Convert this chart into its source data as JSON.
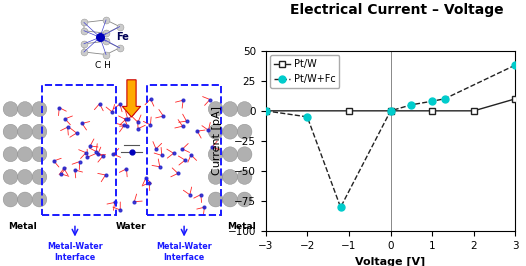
{
  "title": "Electrical Current – Voltage",
  "xlabel": "Voltage [V]",
  "ylabel": "Current [pA]",
  "xlim": [
    -3,
    3
  ],
  "ylim": [
    -100,
    50
  ],
  "yticks": [
    -100,
    -75,
    -50,
    -25,
    0,
    25,
    50
  ],
  "xticks": [
    -3,
    -2,
    -1,
    0,
    1,
    2,
    3
  ],
  "ptw_x": [
    -3,
    -1,
    0,
    1,
    2,
    3
  ],
  "ptw_y": [
    0,
    0,
    0,
    0,
    0,
    10
  ],
  "ptwfc_x": [
    -3,
    -2,
    -1.2,
    0,
    0.5,
    1.0,
    1.3,
    3
  ],
  "ptwfc_y": [
    0,
    -5,
    -80,
    0,
    5,
    8,
    10,
    38
  ],
  "ptw_color": "#222222",
  "ptwfc_color": "#00cccc",
  "background": "#ffffff",
  "title_fontsize": 10,
  "axis_fontsize": 8,
  "tick_fontsize": 7.5,
  "legend_fontsize": 7,
  "metal_color": "#b0b0b0",
  "water_bg": "#ffffff",
  "blue_arrow_color": "#1a1aff",
  "red_arrow_color": "#dd2200",
  "orange_arrow_color": "#ffaa00",
  "label_color_black": "#000000",
  "label_color_blue": "#1a1aff",
  "fe_color": "#0000bb",
  "label_fontsize": 6.5,
  "interface_fontsize": 6.0
}
